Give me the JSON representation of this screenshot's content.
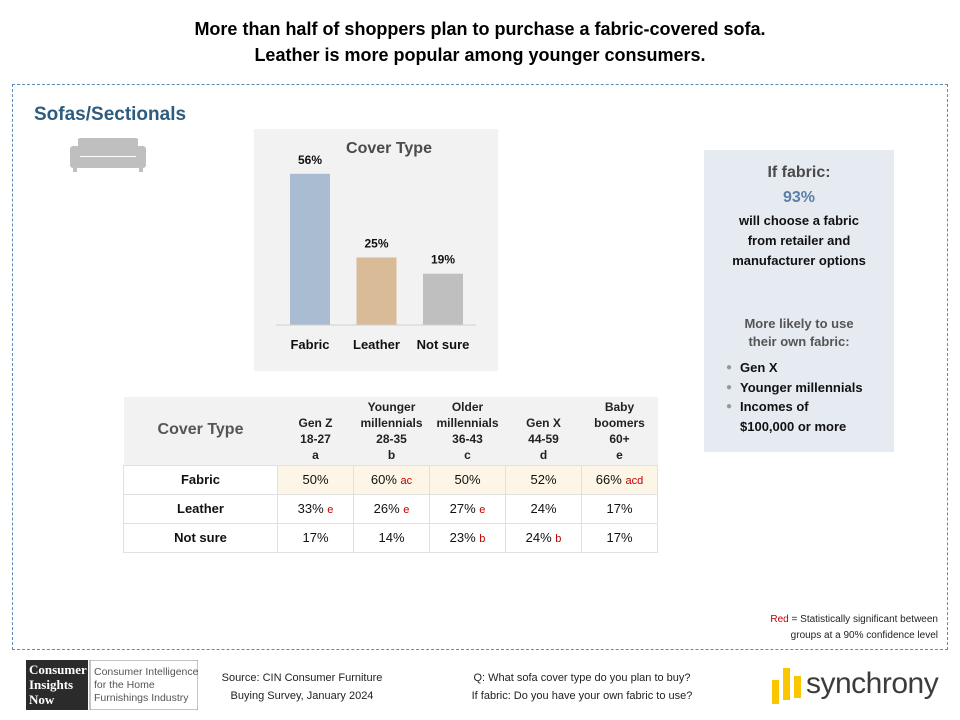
{
  "header": {
    "line1": "More than half of shoppers plan to purchase a fabric-covered sofa.",
    "line2": "Leather is more popular among younger consumers."
  },
  "section": {
    "title": "Sofas/Sectionals",
    "icon": "sofa-icon"
  },
  "chart_data": {
    "type": "bar",
    "title": "Cover Type",
    "categories": [
      "Fabric",
      "Leather",
      "Not sure"
    ],
    "values": [
      56,
      25,
      19
    ],
    "value_labels": [
      "56%",
      "25%",
      "19%"
    ],
    "colors": [
      "#a9bcd2",
      "#d9bb97",
      "#bfbfbf"
    ],
    "ylim": [
      0,
      60
    ],
    "grid": false,
    "legend": "none"
  },
  "fabric_box": {
    "title": "If fabric:",
    "percent": "93%",
    "line1": "will choose a fabric",
    "line2": "from retailer and",
    "line3": "manufacturer options",
    "likely_line1": "More likely to use",
    "likely_line2": "their own fabric:",
    "items": [
      "Gen X",
      "Younger millennials",
      "Incomes of",
      "$100,000 or more"
    ]
  },
  "table": {
    "corner": "Cover Type",
    "columns": [
      {
        "l1": "",
        "l2": "Gen Z",
        "l3": "18-27",
        "l4": "a"
      },
      {
        "l1": "Younger",
        "l2": "millennials",
        "l3": "28-35",
        "l4": "b"
      },
      {
        "l1": "Older",
        "l2": "millennials",
        "l3": "36-43",
        "l4": "c"
      },
      {
        "l1": "",
        "l2": "Gen X",
        "l3": "44-59",
        "l4": "d"
      },
      {
        "l1": "Baby",
        "l2": "boomers",
        "l3": "60+",
        "l4": "e"
      }
    ],
    "rows": [
      {
        "label": "Fabric",
        "cells": [
          {
            "v": "50%",
            "sig": ""
          },
          {
            "v": "60%",
            "sig": "ac"
          },
          {
            "v": "50%",
            "sig": ""
          },
          {
            "v": "52%",
            "sig": ""
          },
          {
            "v": "66%",
            "sig": "acd"
          }
        ]
      },
      {
        "label": "Leather",
        "cells": [
          {
            "v": "33%",
            "sig": "e"
          },
          {
            "v": "26%",
            "sig": "e"
          },
          {
            "v": "27%",
            "sig": "e"
          },
          {
            "v": "24%",
            "sig": ""
          },
          {
            "v": "17%",
            "sig": ""
          }
        ]
      },
      {
        "label": "Not sure",
        "cells": [
          {
            "v": "17%",
            "sig": ""
          },
          {
            "v": "14%",
            "sig": ""
          },
          {
            "v": "23%",
            "sig": "b"
          },
          {
            "v": "24%",
            "sig": "b"
          },
          {
            "v": "17%",
            "sig": ""
          }
        ]
      }
    ],
    "highlight_color": "#fdf5e6",
    "significance_color": "#c00000"
  },
  "note": {
    "red_word": "Red",
    "line1_rest": " = Statistically significant between",
    "line2": "groups at a 90% confidence level"
  },
  "footer": {
    "cin_logo": {
      "word1": "Consumer",
      "word2": "Insights",
      "word3": "Now",
      "tag1": "Consumer Intelligence",
      "tag2": "for the Home",
      "tag3": "Furnishings Industry"
    },
    "source_line1": "Source: CIN Consumer Furniture",
    "source_line2": "Buying Survey, January 2024",
    "question_line1": "Q: What sofa cover type do you plan to buy?",
    "question_line2": "If fabric: Do you have your own fabric to use?",
    "brand": "synchrony",
    "brand_color": "#fbc600"
  }
}
